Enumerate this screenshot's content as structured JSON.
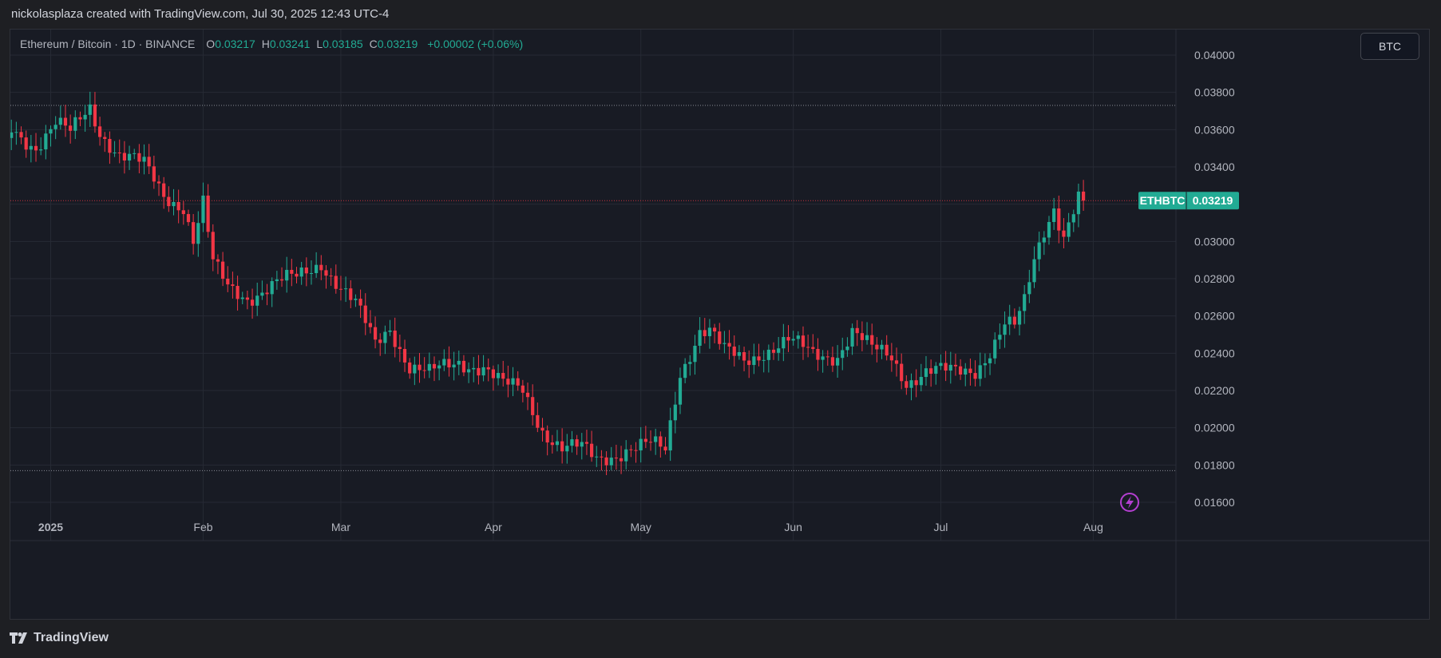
{
  "caption": "nickolasplaza created with TradingView.com, Jul 30, 2025 12:43 UTC-4",
  "legend": {
    "symbol": "Ethereum / Bitcoin · 1D · BINANCE",
    "o_label": "O",
    "o": "0.03217",
    "h_label": "H",
    "h": "0.03241",
    "l_label": "L",
    "l": "0.03185",
    "c_label": "C",
    "c": "0.03219",
    "change": "+0.00002 (+0.06%)"
  },
  "currency_button": "BTC",
  "price_label": {
    "ticker": "ETHBTC",
    "value": "0.03219"
  },
  "brand": "TradingView",
  "colors": {
    "up": "#22ab94",
    "down": "#f23645",
    "bg": "#181b24",
    "grid": "#262a34",
    "text": "#d1d4dc",
    "accent": "#b43fd1"
  },
  "icons": {
    "lightning": "lightning-icon",
    "brand": "tradingview-logo-icon"
  },
  "chart_data": {
    "type": "candlestick",
    "ylim": [
      0.0152,
      0.0412
    ],
    "y_ticks": [
      "0.01600",
      "0.01800",
      "0.02000",
      "0.02200",
      "0.02400",
      "0.02600",
      "0.02800",
      "0.03000",
      "0.03200",
      "0.03400",
      "0.03600",
      "0.03800",
      "0.04000"
    ],
    "x_tick_labels": [
      "2025",
      "Feb",
      "Mar",
      "Apr",
      "May",
      "Jun",
      "Jul",
      "Aug"
    ],
    "reference_lines": [
      0.0373,
      0.0177
    ],
    "last_price": 0.03219,
    "anchors": [
      [
        "2024-12-24",
        0.036
      ],
      [
        "2024-12-29",
        0.0352
      ],
      [
        "2025-01-02",
        0.0363
      ],
      [
        "2025-01-05",
        0.0357
      ],
      [
        "2025-01-09",
        0.0372
      ],
      [
        "2025-01-11",
        0.036
      ],
      [
        "2025-01-15",
        0.0347
      ],
      [
        "2025-01-20",
        0.034
      ],
      [
        "2025-01-24",
        0.0325
      ],
      [
        "2025-01-28",
        0.032
      ],
      [
        "2025-01-30",
        0.0301
      ],
      [
        "2025-02-01",
        0.032
      ],
      [
        "2025-02-03",
        0.0287
      ],
      [
        "2025-02-06",
        0.0275
      ],
      [
        "2025-02-10",
        0.0271
      ],
      [
        "2025-02-16",
        0.0277
      ],
      [
        "2025-02-20",
        0.028
      ],
      [
        "2025-02-25",
        0.029
      ],
      [
        "2025-03-01",
        0.0275
      ],
      [
        "2025-03-04",
        0.0265
      ],
      [
        "2025-03-08",
        0.0245
      ],
      [
        "2025-03-11",
        0.0255
      ],
      [
        "2025-03-15",
        0.0233
      ],
      [
        "2025-03-19",
        0.0228
      ],
      [
        "2025-03-25",
        0.0236
      ],
      [
        "2025-03-30",
        0.0233
      ],
      [
        "2025-04-03",
        0.0222
      ],
      [
        "2025-04-07",
        0.022
      ],
      [
        "2025-04-11",
        0.02
      ],
      [
        "2025-04-15",
        0.0189
      ],
      [
        "2025-04-19",
        0.0188
      ],
      [
        "2025-04-22",
        0.0183
      ],
      [
        "2025-04-28",
        0.0189
      ],
      [
        "2025-05-03",
        0.019
      ],
      [
        "2025-05-06",
        0.0187
      ],
      [
        "2025-05-09",
        0.023
      ],
      [
        "2025-05-13",
        0.0253
      ],
      [
        "2025-05-15",
        0.0252
      ],
      [
        "2025-05-18",
        0.024
      ],
      [
        "2025-05-22",
        0.0236
      ],
      [
        "2025-05-26",
        0.0242
      ],
      [
        "2025-05-31",
        0.0246
      ],
      [
        "2025-06-05",
        0.0239
      ],
      [
        "2025-06-10",
        0.024
      ],
      [
        "2025-06-13",
        0.0252
      ],
      [
        "2025-06-17",
        0.0241
      ],
      [
        "2025-06-21",
        0.0238
      ],
      [
        "2025-06-24",
        0.0226
      ],
      [
        "2025-06-28",
        0.023
      ],
      [
        "2025-07-03",
        0.0229
      ],
      [
        "2025-07-08",
        0.0232
      ],
      [
        "2025-07-11",
        0.0242
      ],
      [
        "2025-07-14",
        0.0255
      ],
      [
        "2025-07-16",
        0.0253
      ],
      [
        "2025-07-18",
        0.0266
      ],
      [
        "2025-07-20",
        0.029
      ],
      [
        "2025-07-22",
        0.0307
      ],
      [
        "2025-07-24",
        0.032
      ],
      [
        "2025-07-26",
        0.0304
      ],
      [
        "2025-07-29",
        0.0323
      ],
      [
        "2025-07-30",
        0.03219
      ]
    ]
  }
}
